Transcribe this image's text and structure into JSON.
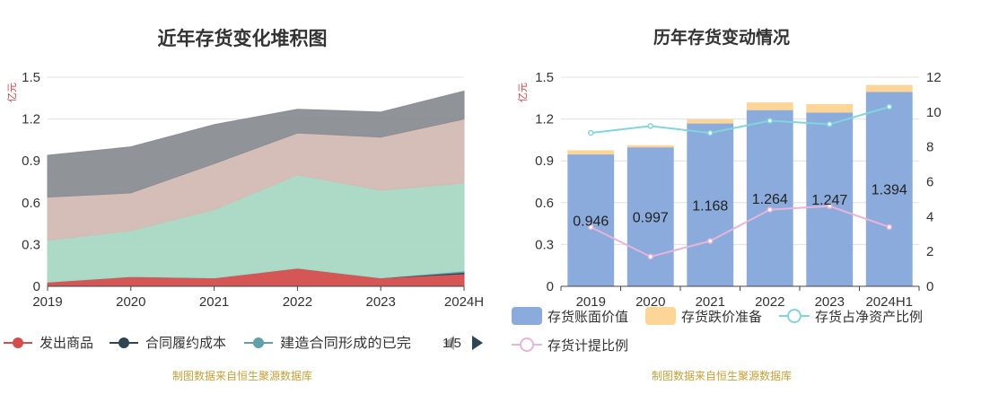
{
  "colors": {
    "red": "#d44c4c",
    "dark": "#2f4554",
    "teal": "#61a0a8",
    "green": "#a8d8c4",
    "tan": "#d3bbb3",
    "gray": "#8a8e94",
    "bar_value": "#8aabdb",
    "bar_reserve": "#fdd596",
    "line_ratio": "#7fd6dc",
    "line_provision": "#e8b4d8",
    "source": "#c9a037",
    "unit": "#e4393c"
  },
  "chart_data": [
    {
      "type": "area",
      "stacked": true,
      "title": "近年存货变化堆积图",
      "unit_label": "亿元",
      "x": [
        "2019",
        "2020",
        "2021",
        "2022",
        "2023",
        "2024H"
      ],
      "y_ticks": [
        "0",
        "0.3",
        "0.6",
        "0.9",
        "1.2",
        "1.5"
      ],
      "ylim": [
        0,
        1.5
      ],
      "series": [
        {
          "name": "发出商品",
          "color_key": "red",
          "values": [
            0.03,
            0.07,
            0.06,
            0.13,
            0.06,
            0.09
          ]
        },
        {
          "name": "合同履约成本",
          "color_key": "dark",
          "values": [
            0.0,
            0.0,
            0.0,
            0.0,
            0.0,
            0.01
          ]
        },
        {
          "name": "建造合同形成的已完",
          "color_key": "teal",
          "values": [
            0.0,
            0.0,
            0.0,
            0.0,
            0.0,
            0.01
          ]
        },
        {
          "color_key": "green",
          "values": [
            0.3,
            0.33,
            0.49,
            0.67,
            0.63,
            0.63
          ]
        },
        {
          "color_key": "tan",
          "values": [
            0.31,
            0.27,
            0.33,
            0.3,
            0.38,
            0.46
          ]
        },
        {
          "color_key": "gray",
          "values": [
            0.3,
            0.33,
            0.28,
            0.17,
            0.18,
            0.2
          ]
        }
      ],
      "legend": {
        "items": [
          "发出商品",
          "合同履约成本",
          "建造合同形成的已完"
        ],
        "page": "1/5"
      },
      "source": "制图数据来自恒生聚源数据库"
    },
    {
      "type": "bar",
      "stacked": true,
      "title": "历年存货变动情况",
      "unit_label": "亿元",
      "categories": [
        "2019",
        "2020",
        "2021",
        "2022",
        "2023",
        "2024H1"
      ],
      "y_ticks": [
        "0",
        "0.3",
        "0.6",
        "0.9",
        "1.2",
        "1.5"
      ],
      "ylim": [
        0,
        1.5
      ],
      "y2_ticks": [
        "0",
        "2",
        "4",
        "6",
        "8",
        "10",
        "12"
      ],
      "y2lim": [
        0,
        12
      ],
      "series": [
        {
          "name": "存货账面价值",
          "type": "bar",
          "color_key": "bar_value",
          "values": [
            0.946,
            0.997,
            1.168,
            1.264,
            1.247,
            1.394
          ],
          "labels": [
            "0.946",
            "0.997",
            "1.168",
            "1.264",
            "1.247",
            "1.394"
          ]
        },
        {
          "name": "存货跌价准备",
          "type": "bar",
          "color_key": "bar_reserve",
          "values": [
            0.03,
            0.015,
            0.03,
            0.055,
            0.06,
            0.05
          ]
        },
        {
          "name": "存货占净资产比例",
          "type": "line",
          "axis": "right",
          "color_key": "line_ratio",
          "values": [
            8.8,
            9.2,
            8.8,
            9.5,
            9.3,
            10.3
          ]
        },
        {
          "name": "存货计提比例",
          "type": "line",
          "axis": "right",
          "color_key": "line_provision",
          "values": [
            3.4,
            1.7,
            2.6,
            4.4,
            4.6,
            3.4
          ]
        }
      ],
      "source": "制图数据来自恒生聚源数据库"
    }
  ]
}
